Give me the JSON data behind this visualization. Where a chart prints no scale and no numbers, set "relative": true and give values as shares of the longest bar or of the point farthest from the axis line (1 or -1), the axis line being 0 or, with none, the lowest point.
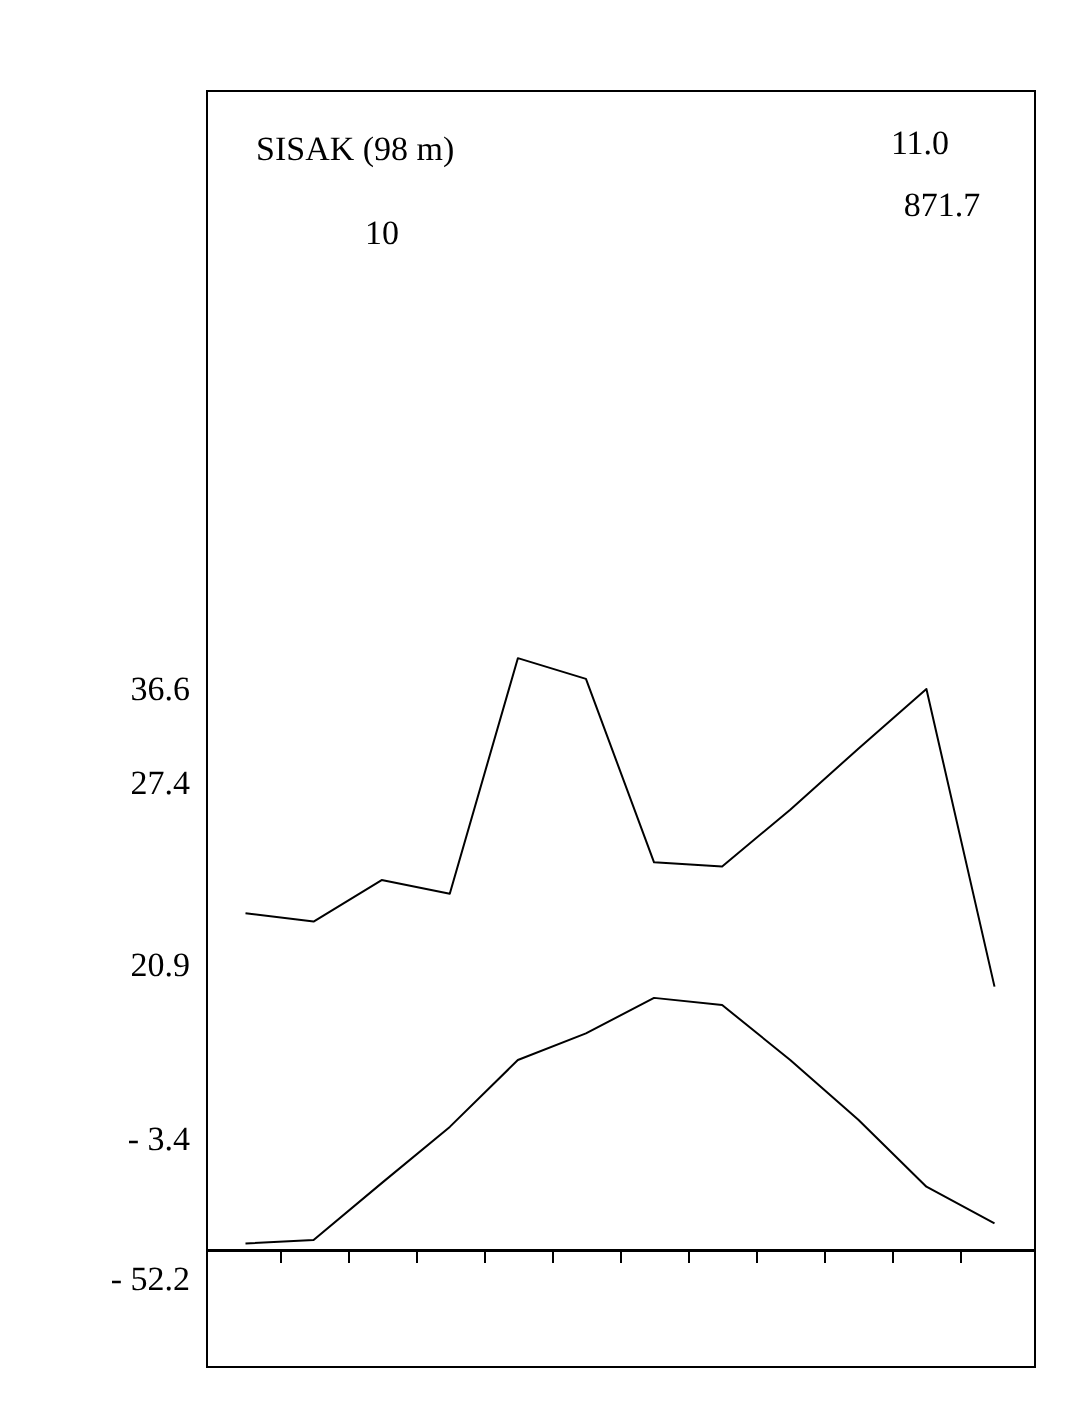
{
  "chart_data": {
    "type": "line",
    "relative": true,
    "title": "SISAK (98 m)",
    "categories": [
      null,
      null,
      null,
      null,
      null,
      null,
      null,
      null,
      null,
      null,
      null,
      null
    ],
    "series": [
      {
        "color": "#000000",
        "values": [
          0.569,
          0.555,
          0.625,
          0.602,
          1,
          0.965,
          0.655,
          0.648,
          0.744,
          0.847,
          0.948,
          0.445
        ]
      },
      {
        "color": "#000000",
        "values": [
          0.011,
          0.017,
          0.113,
          0.208,
          0.321,
          0.366,
          0.426,
          0.414,
          0.321,
          0.22,
          0.107,
          0.045
        ]
      }
    ],
    "annotations": [
      "10",
      "11.0",
      "871.7",
      "36.6",
      "27.4",
      "20.9",
      "- 3.4",
      "- 52.2"
    ],
    "marker": "none",
    "line_style": "solid",
    "grid": false
  }
}
